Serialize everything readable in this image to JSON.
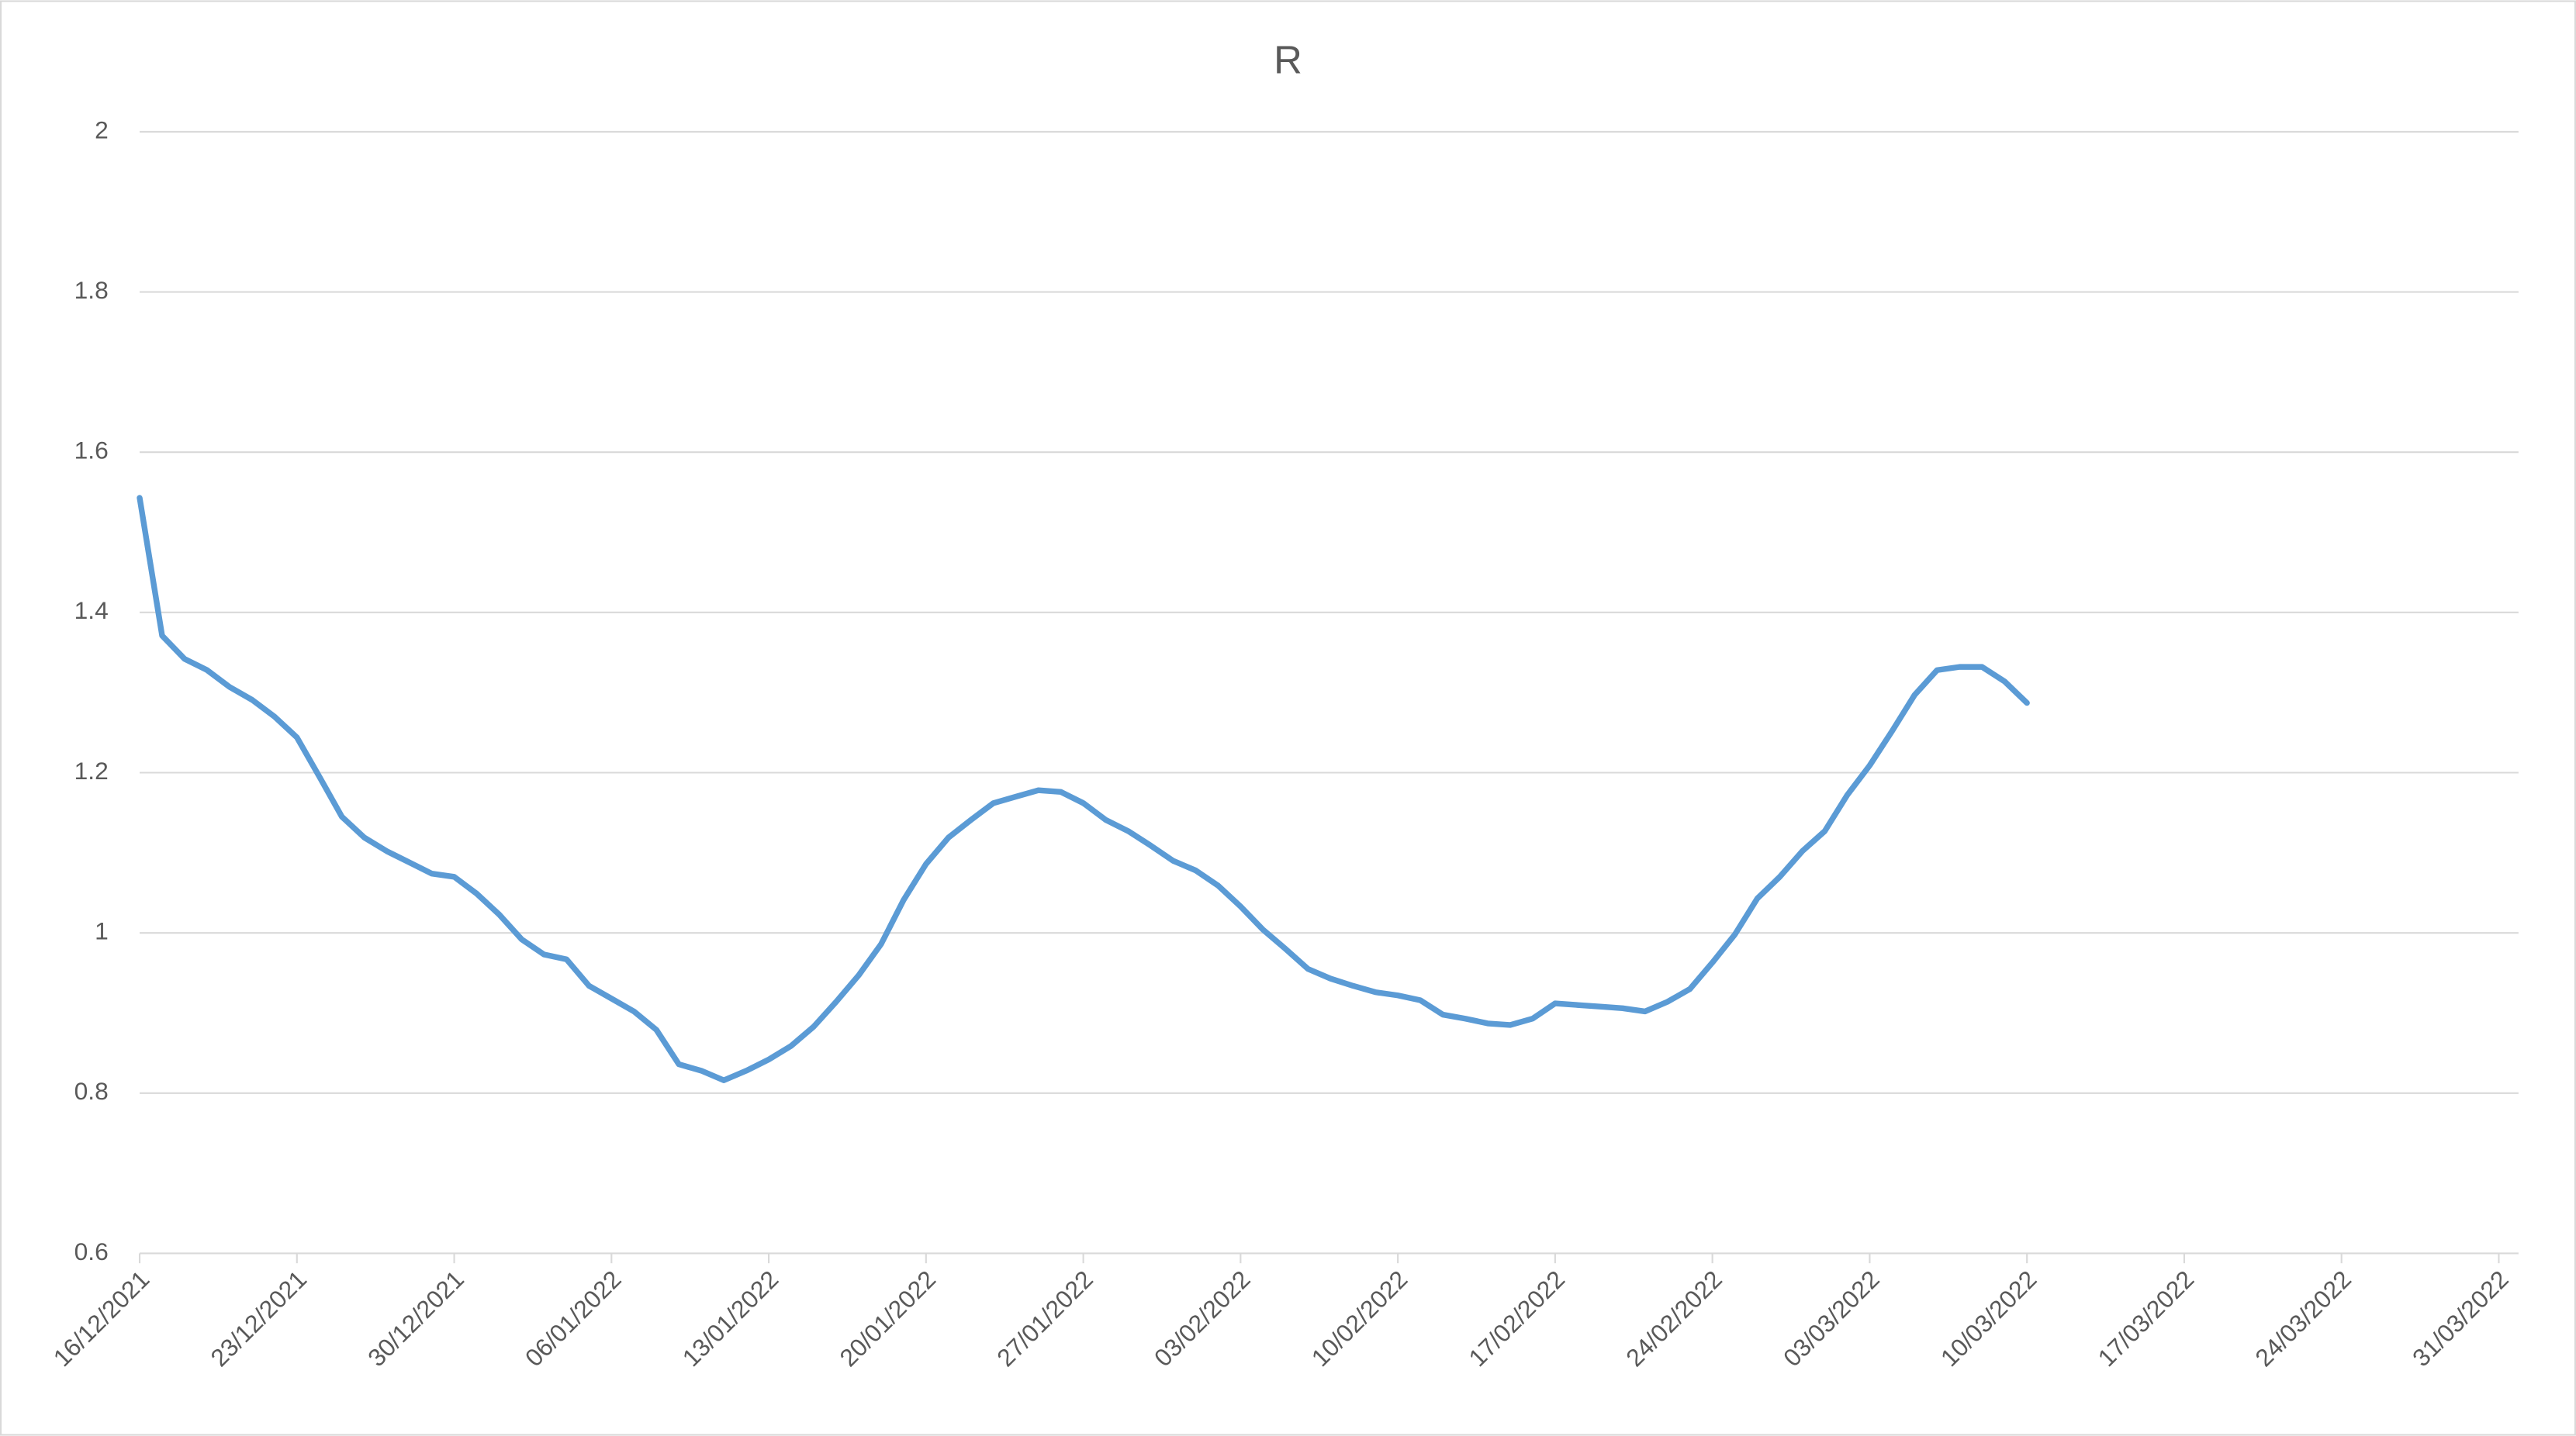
{
  "chart_data": {
    "type": "line",
    "title": "R",
    "x": [
      "16/12/2021",
      "17/12/2021",
      "18/12/2021",
      "19/12/2021",
      "20/12/2021",
      "21/12/2021",
      "22/12/2021",
      "23/12/2021",
      "24/12/2021",
      "25/12/2021",
      "26/12/2021",
      "27/12/2021",
      "28/12/2021",
      "29/12/2021",
      "30/12/2021",
      "31/12/2021",
      "01/01/2022",
      "02/01/2022",
      "03/01/2022",
      "04/01/2022",
      "05/01/2022",
      "06/01/2022",
      "07/01/2022",
      "08/01/2022",
      "09/01/2022",
      "10/01/2022",
      "11/01/2022",
      "12/01/2022",
      "13/01/2022",
      "14/01/2022",
      "15/01/2022",
      "16/01/2022",
      "17/01/2022",
      "18/01/2022",
      "19/01/2022",
      "20/01/2022",
      "21/01/2022",
      "22/01/2022",
      "23/01/2022",
      "24/01/2022",
      "25/01/2022",
      "26/01/2022",
      "27/01/2022",
      "28/01/2022",
      "29/01/2022",
      "30/01/2022",
      "31/01/2022",
      "01/02/2022",
      "02/02/2022",
      "03/02/2022",
      "04/02/2022",
      "05/02/2022",
      "06/02/2022",
      "07/02/2022",
      "08/02/2022",
      "09/02/2022",
      "10/02/2022",
      "11/02/2022",
      "12/02/2022",
      "13/02/2022",
      "14/02/2022",
      "15/02/2022",
      "16/02/2022",
      "17/02/2022",
      "18/02/2022",
      "19/02/2022",
      "20/02/2022",
      "21/02/2022",
      "22/02/2022",
      "23/02/2022",
      "24/02/2022",
      "25/02/2022",
      "26/02/2022",
      "27/02/2022",
      "28/02/2022",
      "01/03/2022",
      "02/03/2022",
      "03/03/2022",
      "04/03/2022",
      "05/03/2022",
      "06/03/2022",
      "07/03/2022",
      "08/03/2022",
      "09/03/2022",
      "10/03/2022"
    ],
    "values": [
      1.543,
      1.371,
      1.342,
      1.328,
      1.307,
      1.291,
      1.27,
      1.244,
      1.195,
      1.145,
      1.119,
      1.102,
      1.088,
      1.074,
      1.07,
      1.049,
      1.023,
      0.992,
      0.973,
      0.967,
      0.934,
      0.918,
      0.902,
      0.879,
      0.836,
      0.828,
      0.816,
      0.828,
      0.842,
      0.859,
      0.883,
      0.914,
      0.947,
      0.986,
      1.041,
      1.086,
      1.119,
      1.141,
      1.162,
      1.17,
      1.178,
      1.176,
      1.162,
      1.141,
      1.127,
      1.109,
      1.09,
      1.078,
      1.059,
      1.033,
      1.004,
      0.98,
      0.955,
      0.943,
      0.934,
      0.926,
      0.922,
      0.916,
      0.898,
      0.893,
      0.887,
      0.885,
      0.893,
      0.912,
      0.91,
      0.908,
      0.906,
      0.902,
      0.914,
      0.93,
      0.963,
      0.998,
      1.043,
      1.07,
      1.102,
      1.127,
      1.172,
      1.209,
      1.252,
      1.297,
      1.328,
      1.332,
      1.332,
      1.314,
      1.287
    ],
    "color": "#5b9bd5",
    "xlim": [
      "16/12/2021",
      "31/03/2022"
    ],
    "xticks": [
      "16/12/2021",
      "23/12/2021",
      "30/12/2021",
      "06/01/2022",
      "13/01/2022",
      "20/01/2022",
      "27/01/2022",
      "03/02/2022",
      "10/02/2022",
      "17/02/2022",
      "24/02/2022",
      "03/03/2022",
      "10/03/2022",
      "17/03/2022",
      "24/03/2022",
      "31/03/2022"
    ],
    "ylim": [
      0.6,
      2
    ],
    "yticks": [
      0.6,
      0.8,
      1,
      1.2,
      1.4,
      1.6,
      1.8,
      2
    ],
    "grid": true
  }
}
